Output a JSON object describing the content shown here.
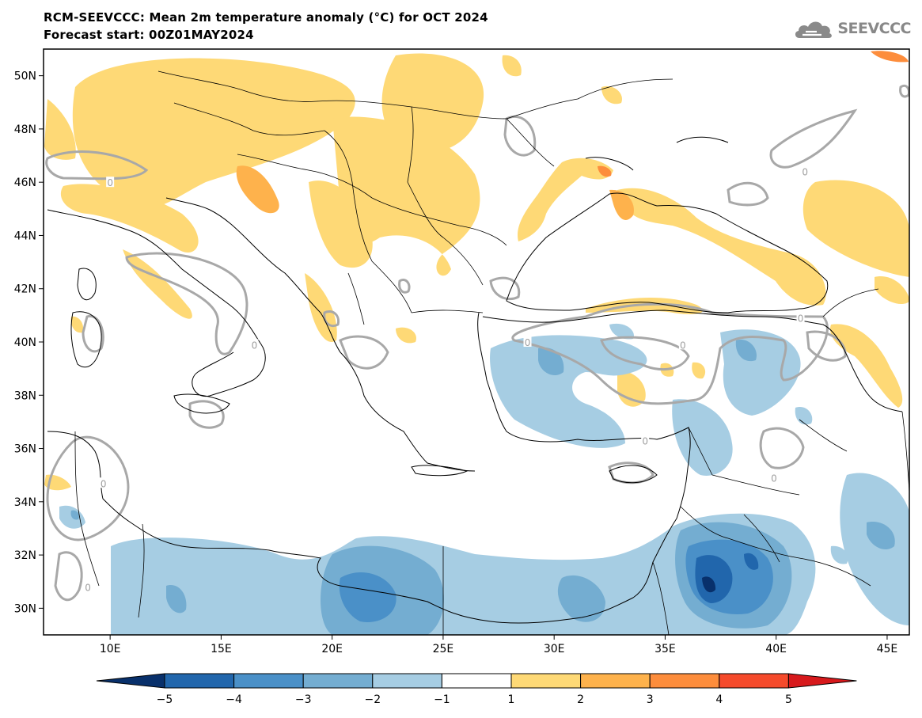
{
  "header": {
    "title": "RCM-SEEVCCC: Mean 2m temperature anomaly (°C) for OCT 2024",
    "subtitle": "Forecast start: 00Z01MAY2024",
    "logo_text": "SEEVCCC"
  },
  "map": {
    "lon_range": [
      7,
      46
    ],
    "lat_range": [
      29,
      51
    ],
    "lon_ticks": [
      "10E",
      "15E",
      "20E",
      "25E",
      "30E",
      "35E",
      "40E",
      "45E"
    ],
    "lat_ticks": [
      "50N",
      "48N",
      "46N",
      "44N",
      "42N",
      "40N",
      "38N",
      "36N",
      "34N",
      "32N",
      "30N"
    ],
    "contour_label": "0",
    "contour_labels": [
      {
        "lon": 9.0,
        "lat": 30.8
      },
      {
        "lon": 9.7,
        "lat": 34.7
      },
      {
        "lon": 10.0,
        "lat": 46.0
      },
      {
        "lon": 16.5,
        "lat": 39.9
      },
      {
        "lon": 28.8,
        "lat": 40.0
      },
      {
        "lon": 34.1,
        "lat": 36.3
      },
      {
        "lon": 35.8,
        "lat": 39.9
      },
      {
        "lon": 39.9,
        "lat": 34.9
      },
      {
        "lon": 41.1,
        "lat": 40.9
      },
      {
        "lon": 41.3,
        "lat": 46.4
      }
    ]
  },
  "colorbar": {
    "labels": [
      "−5",
      "−4",
      "−3",
      "−2",
      "−1",
      "1",
      "2",
      "3",
      "4",
      "5"
    ],
    "colors": [
      "#08306b",
      "#2166ac",
      "#4a90c8",
      "#74add1",
      "#a6cde3",
      "#ffffff",
      "#fed976",
      "#feb24c",
      "#fd8d3c",
      "#f54a2b",
      "#d7191c"
    ]
  }
}
